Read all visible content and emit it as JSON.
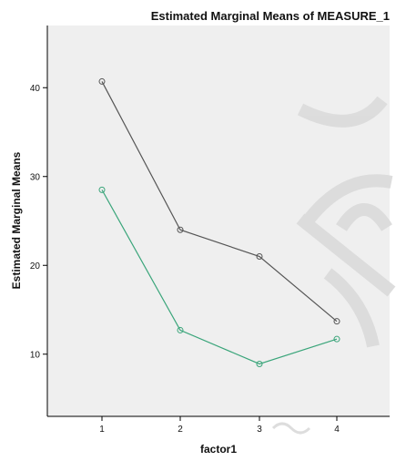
{
  "chart_data": {
    "type": "line",
    "title": "Estimated Marginal Means of MEASURE_1",
    "xlabel": "factor1",
    "ylabel": "Estimated Marginal Means",
    "categories": [
      "1",
      "2",
      "3",
      "4"
    ],
    "yticks": [
      "10",
      "20",
      "30",
      "40"
    ],
    "ylim": [
      3,
      47
    ],
    "grid": false,
    "series": [
      {
        "values": [
          40.7,
          24.0,
          21.0,
          13.7
        ],
        "color": "#555555"
      },
      {
        "values": [
          28.5,
          12.7,
          8.9,
          11.7
        ],
        "color": "#3aa57a"
      }
    ]
  },
  "colors": {
    "plot_background": "#efefef",
    "watermark": "#dcdcdc"
  }
}
